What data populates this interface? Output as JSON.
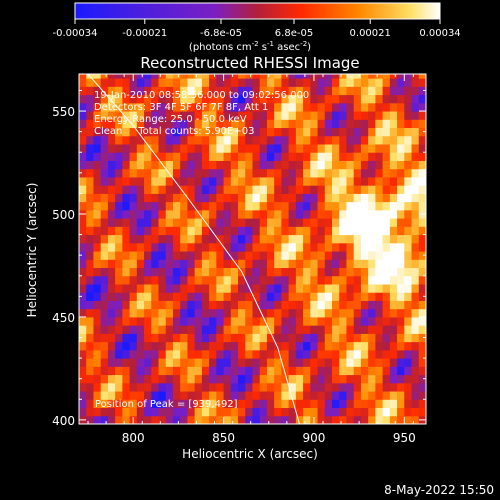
{
  "colorbar": {
    "ticks": [
      "-0.00034",
      "-0.00021",
      "-6.8e-05",
      "6.8e-05",
      "0.00021",
      "0.00034"
    ],
    "tick_values": [
      -0.00034,
      -0.00021,
      -6.8e-05,
      6.8e-05,
      0.00021,
      0.00034
    ],
    "range": [
      -0.00034,
      0.00034
    ],
    "units": {
      "prefix": "(photons cm",
      "exp1": "-2",
      "mid1": " s",
      "exp2": "-1",
      "mid2": " asec",
      "exp3": "-2",
      "suffix": ")"
    },
    "colormap": [
      "#1a1aff",
      "#7a1fc4",
      "#b31f3a",
      "#ff2a00",
      "#ff8800",
      "#ffe066",
      "#ffffff"
    ]
  },
  "chart_data": {
    "type": "heatmap",
    "title": "Reconstructed RHESSI Image",
    "xlabel": "Heliocentric X (arcsec)",
    "ylabel": "Heliocentric Y (arcsec)",
    "xlim": [
      770,
      962
    ],
    "ylim": [
      398,
      568
    ],
    "x_ticks": [
      800,
      850,
      900,
      950
    ],
    "y_ticks": [
      400,
      450,
      500,
      550
    ],
    "x_tick_labels": [
      "800",
      "850",
      "900",
      "950"
    ],
    "y_tick_labels": [
      "400",
      "450",
      "500",
      "550"
    ],
    "info_lines": [
      "19-Jan-2010 08:58:56.000 to 09:02:56.000",
      "Detectors: 3F 4F 5F 6F 7F 8F, Att 1",
      "Energy Range: 25.0 - 50.0 keV",
      "Clean     Total counts: 5.90E+03"
    ],
    "peak_label": "Position of Peak = [939,492]",
    "peak": [
      939,
      492
    ],
    "limb_curve": [
      [
        775,
        568
      ],
      [
        800,
        543
      ],
      [
        830,
        508
      ],
      [
        860,
        472
      ],
      [
        880,
        435
      ],
      [
        892,
        398
      ]
    ]
  },
  "timestamp": "8-May-2022 15:50"
}
